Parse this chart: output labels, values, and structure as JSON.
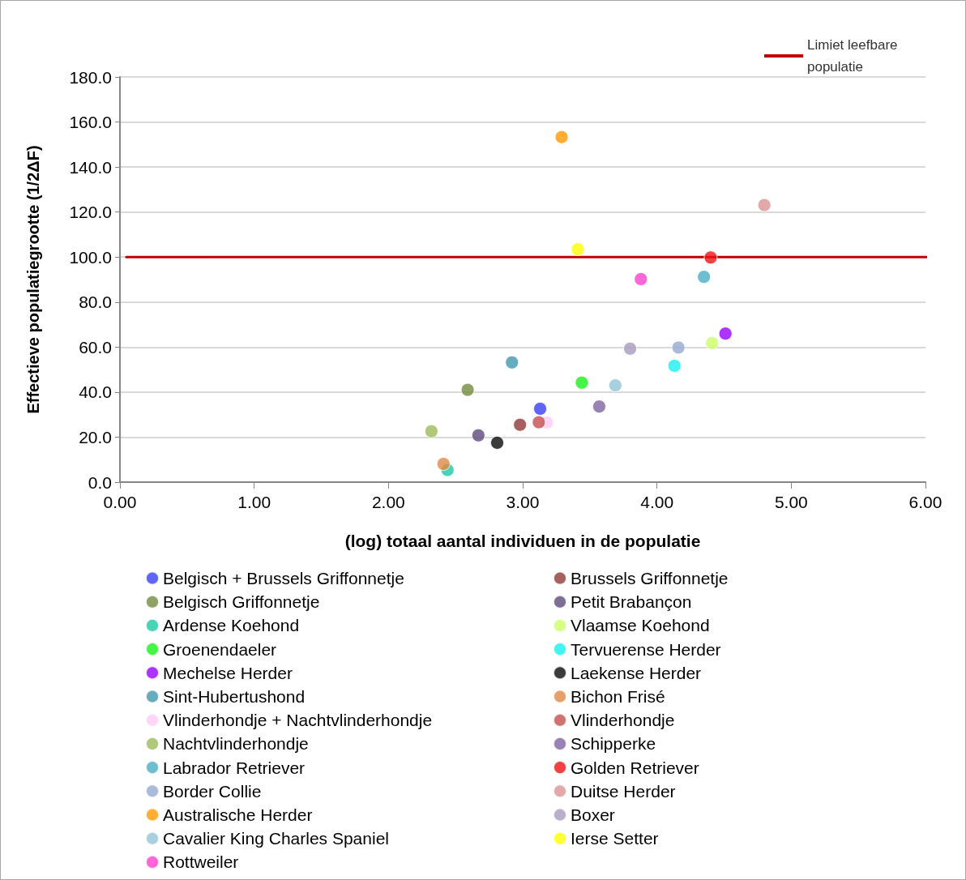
{
  "chart_data": {
    "type": "scatter",
    "xlabel": "(log) totaal aantal individuen in de populatie",
    "ylabel": "Effectieve populatiegrootte (1/2ΔF)",
    "xlim": [
      0,
      6
    ],
    "xticks": [
      {
        "value": 0,
        "label": "0.00"
      },
      {
        "value": 1,
        "label": "1.00"
      },
      {
        "value": 2,
        "label": "2.00"
      },
      {
        "value": 3,
        "label": "3.00"
      },
      {
        "value": 4,
        "label": "4.00"
      },
      {
        "value": 5,
        "label": "5.00"
      },
      {
        "value": 6,
        "label": "6.00"
      }
    ],
    "ylim": [
      0,
      180
    ],
    "yticks": [
      {
        "value": 0,
        "label": "0.0"
      },
      {
        "value": 20,
        "label": "20.0"
      },
      {
        "value": 40,
        "label": "40.0"
      },
      {
        "value": 60,
        "label": "60.0"
      },
      {
        "value": 80,
        "label": "80.0"
      },
      {
        "value": 100,
        "label": "100.0"
      },
      {
        "value": 120,
        "label": "120.0"
      },
      {
        "value": 140,
        "label": "140.0"
      },
      {
        "value": 160,
        "label": "160.0"
      },
      {
        "value": 180,
        "label": "180.0"
      }
    ],
    "grid": "y",
    "legend": "bottom",
    "marker": "circle",
    "ref_lines": [
      {
        "axis": "y",
        "value": 100,
        "label": "Limiet leefbare populatie",
        "color": "#c00000"
      }
    ],
    "series": [
      {
        "name": "Belgisch + Brussels Griffonnetje",
        "color": "#3a3ef5",
        "x": [
          3.13
        ],
        "values": [
          32.6
        ]
      },
      {
        "name": "Brussels Griffonnetje",
        "color": "#8e3a36",
        "x": [
          2.98
        ],
        "values": [
          25.5
        ]
      },
      {
        "name": "Belgisch Griffonnetje",
        "color": "#728b3e",
        "x": [
          2.59
        ],
        "values": [
          41.0
        ]
      },
      {
        "name": "Petit Brabançon",
        "color": "#5d4a7a",
        "x": [
          2.67
        ],
        "values": [
          20.8
        ]
      },
      {
        "name": "Ardense Koehond",
        "color": "#1dc8a4",
        "x": [
          2.44
        ],
        "values": [
          5.4
        ]
      },
      {
        "name": "Vlaamse Koehond",
        "color": "#ccff66",
        "x": [
          4.41
        ],
        "values": [
          61.8
        ]
      },
      {
        "name": "Groenendaeler",
        "color": "#19f219",
        "x": [
          3.44
        ],
        "values": [
          44.2
        ]
      },
      {
        "name": "Tervuerense Herder",
        "color": "#16f0f0",
        "x": [
          4.13
        ],
        "values": [
          51.7
        ]
      },
      {
        "name": "Mechelse Herder",
        "color": "#9900ff",
        "x": [
          4.51
        ],
        "values": [
          66.0
        ]
      },
      {
        "name": "Laekense Herder",
        "color": "#0a0a0a",
        "x": [
          2.81
        ],
        "values": [
          17.5
        ]
      },
      {
        "name": "Sint-Hubertushond",
        "color": "#4197ae",
        "x": [
          2.92
        ],
        "values": [
          53.2
        ]
      },
      {
        "name": "Bichon Frisé",
        "color": "#e08a45",
        "x": [
          2.41
        ],
        "values": [
          8.1
        ]
      },
      {
        "name": "Vlinderhondje + Nachtvlinderhondje",
        "color": "#ffccf5",
        "x": [
          3.18
        ],
        "values": [
          26.5
        ]
      },
      {
        "name": "Vlinderhondje",
        "color": "#c4504c",
        "x": [
          3.12
        ],
        "values": [
          26.6
        ]
      },
      {
        "name": "Nachtvlinderhondje",
        "color": "#9bbb59",
        "x": [
          2.32
        ],
        "values": [
          22.6
        ]
      },
      {
        "name": "Schipperke",
        "color": "#8064a2",
        "x": [
          3.57
        ],
        "values": [
          33.6
        ]
      },
      {
        "name": "Labrador Retriever",
        "color": "#4bacc6",
        "x": [
          4.35
        ],
        "values": [
          91.2
        ]
      },
      {
        "name": "Golden Retriever",
        "color": "#ee1111",
        "x": [
          4.4
        ],
        "values": [
          99.8
        ]
      },
      {
        "name": "Border Collie",
        "color": "#95a9cf",
        "x": [
          4.16
        ],
        "values": [
          59.8
        ]
      },
      {
        "name": "Duitse Herder",
        "color": "#d99594",
        "x": [
          4.8
        ],
        "values": [
          123.1
        ]
      },
      {
        "name": "Australische Herder",
        "color": "#ff9900",
        "x": [
          3.29
        ],
        "values": [
          153.3
        ]
      },
      {
        "name": "Boxer",
        "color": "#a99bbd",
        "x": [
          3.8
        ],
        "values": [
          59.3
        ]
      },
      {
        "name": "Cavalier King Charles Spaniel",
        "color": "#93c4d6",
        "x": [
          3.69
        ],
        "values": [
          43.0
        ]
      },
      {
        "name": "Ierse Setter",
        "color": "#ffff00",
        "x": [
          3.41
        ],
        "values": [
          103.5
        ]
      },
      {
        "name": "Rottweiler",
        "color": "#ff40cc",
        "x": [
          3.88
        ],
        "values": [
          90.2
        ]
      }
    ]
  }
}
